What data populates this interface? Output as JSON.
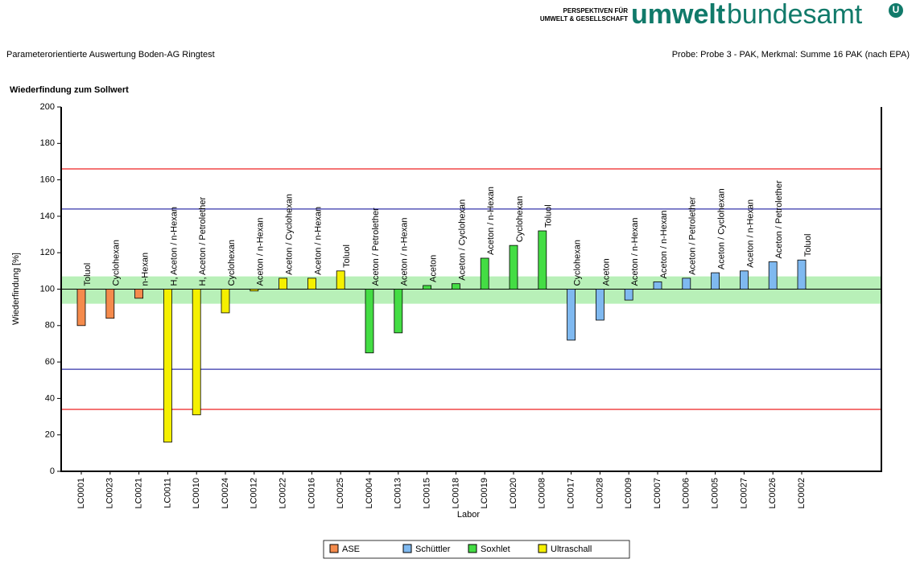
{
  "header": {
    "logo_top": "PERSPEKTIVEN FÜR",
    "logo_bottom": "UMWELT & GESELLSCHAFT",
    "logo_bold": "umwelt",
    "logo_light": "bundesamt",
    "logo_mark": "U",
    "left": "Parameterorientierte Auswertung Boden-AG Ringtest",
    "right": "Probe: Probe 3 - PAK, Merkmal: Summe 16 PAK (nach EPA)"
  },
  "chart_data": {
    "type": "bar",
    "title": "Wiederfindung zum Sollwert",
    "y_label": "Wiederfindung [%]",
    "x_label": "Labor",
    "baseline": 100,
    "categories": [
      "LC0001",
      "LC0023",
      "LC0021",
      "LC0011",
      "LC0010",
      "LC0024",
      "LC0012",
      "LC0022",
      "LC0016",
      "LC0025",
      "LC0004",
      "LC0013",
      "LC0015",
      "LC0018",
      "LC0019",
      "LC0020",
      "LC0008",
      "LC0017",
      "LC0028",
      "LC0009",
      "LC0007",
      "LC0006",
      "LC0005",
      "LC0027",
      "LC0026",
      "LC0002"
    ],
    "bar_labels": [
      "Toluol",
      "Cyclohexan",
      "n-Hexan",
      "H, Aceton / n-Hexan",
      "H, Aceton / Petrolether",
      "Cyclohexan",
      "Aceton / n-Hexan",
      "Aceton / Cyclohexan",
      "Aceton / n-Hexan",
      "Toluol",
      "Aceton / Petrolether",
      "Aceton / n-Hexan",
      "Aceton",
      "Aceton / Cyclohexan",
      "Aceton / n-Hexan",
      "Cyclohexan",
      "Toluol",
      "Cyclohexan",
      "Aceton",
      "Aceton / n-Hexan",
      "Aceton / n-Hexan",
      "Aceton / Petrolether",
      "Aceton / Cyclohexan",
      "Aceton / n-Hexan",
      "Aceton / Petrolether",
      "Toluol"
    ],
    "series": [
      {
        "name": "ASE",
        "color": "#f58b4c",
        "values": [
          80,
          84,
          95,
          null,
          null,
          null,
          null,
          null,
          null,
          null,
          null,
          null,
          null,
          null,
          null,
          null,
          null,
          null,
          null,
          null,
          null,
          null,
          null,
          null,
          null,
          null
        ]
      },
      {
        "name": "Schüttler",
        "color": "#7fb9f0",
        "values": [
          null,
          null,
          null,
          null,
          null,
          null,
          null,
          null,
          null,
          null,
          null,
          null,
          null,
          null,
          null,
          null,
          null,
          72,
          83,
          94,
          104,
          106,
          109,
          110,
          115,
          116
        ]
      },
      {
        "name": "Soxhlet",
        "color": "#44dd44",
        "values": [
          null,
          null,
          null,
          null,
          null,
          null,
          null,
          null,
          null,
          null,
          65,
          76,
          102,
          103,
          117,
          124,
          132,
          null,
          null,
          null,
          null,
          null,
          null,
          null,
          null,
          null
        ]
      },
      {
        "name": "Ultraschall",
        "color": "#f5f000",
        "values": [
          null,
          null,
          null,
          16,
          31,
          87,
          99,
          106,
          106,
          110,
          null,
          null,
          null,
          null,
          null,
          null,
          null,
          null,
          null,
          null,
          null,
          null,
          null,
          null,
          null,
          null
        ]
      }
    ],
    "ylim": [
      0,
      200
    ],
    "yticks": [
      0,
      20,
      40,
      60,
      80,
      100,
      120,
      140,
      160,
      180,
      200
    ],
    "band": [
      92,
      107
    ],
    "band_color": "#b8f0b8",
    "lines": [
      {
        "value": 166,
        "color": "#ee2222"
      },
      {
        "value": 34,
        "color": "#ee2222"
      },
      {
        "value": 144,
        "color": "#3333aa"
      },
      {
        "value": 56,
        "color": "#3333aa"
      }
    ]
  }
}
